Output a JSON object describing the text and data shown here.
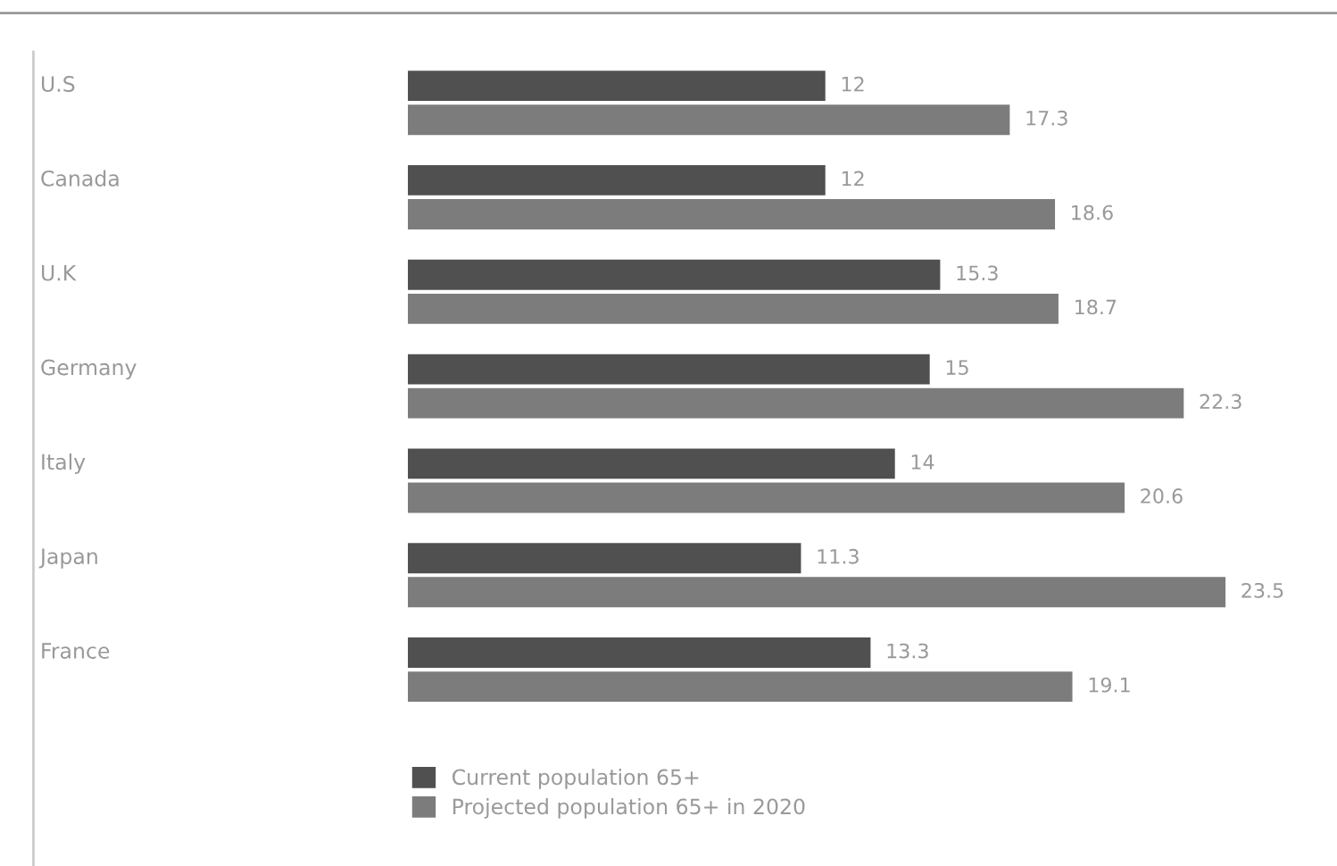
{
  "chart_data": {
    "type": "bar",
    "orientation": "horizontal",
    "categories": [
      "U.S",
      "Canada",
      "U.K",
      "Germany",
      "Italy",
      "Japan",
      "France"
    ],
    "series": [
      {
        "name": "Current population 65+",
        "color": "#505050",
        "values": [
          12,
          12,
          15.3,
          15,
          14,
          11.3,
          13.3
        ]
      },
      {
        "name": "Projected population 65+ in 2020",
        "color": "#7c7c7c",
        "values": [
          17.3,
          18.6,
          18.7,
          22.3,
          20.6,
          23.5,
          19.1
        ]
      }
    ],
    "data_labels": true,
    "tick_labels": "y",
    "legend": "bottom left"
  }
}
